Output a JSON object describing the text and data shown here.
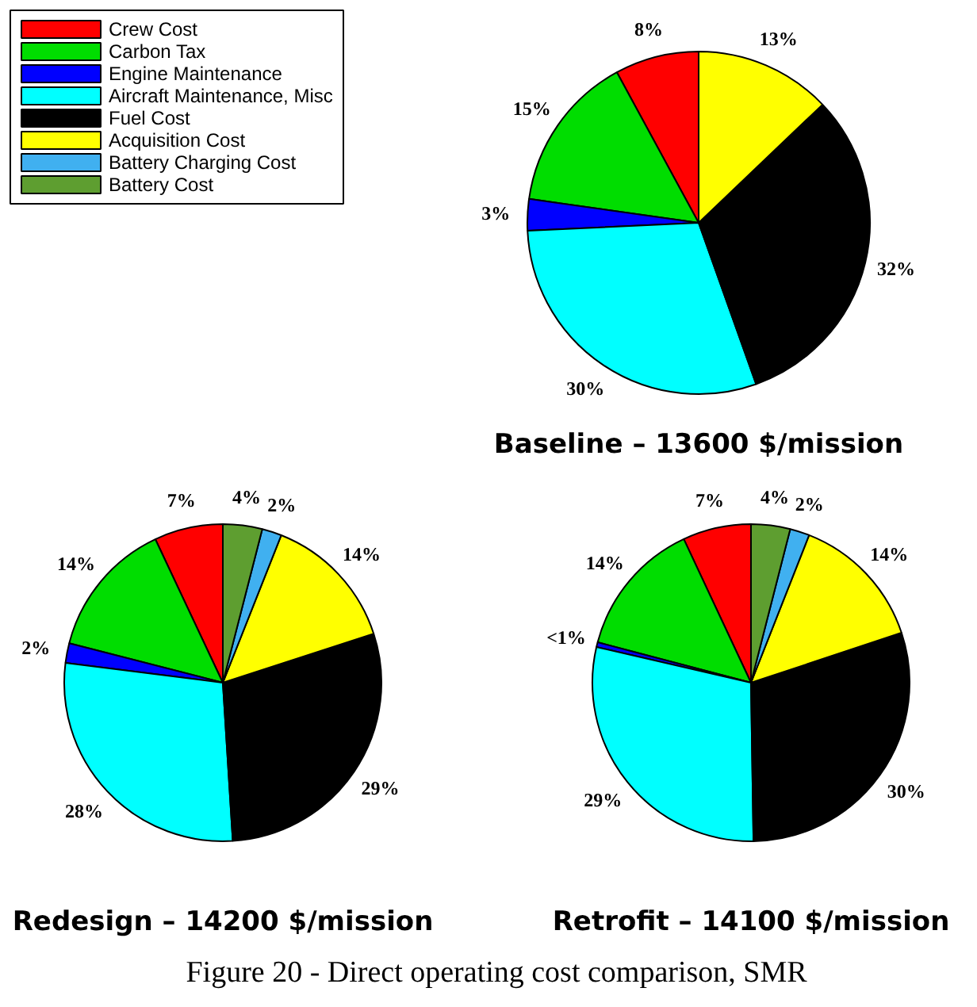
{
  "chart_data": [
    {
      "type": "pie",
      "title": "Baseline – 13600 $/mission",
      "legend": "top left",
      "categories": [
        "Crew Cost",
        "Carbon Tax",
        "Engine Maintenance",
        "Aircraft Maintenance, Misc",
        "Fuel Cost",
        "Acquisition Cost",
        "Battery Charging Cost",
        "Battery Cost"
      ],
      "colors": [
        "#ff0000",
        "#00dd00",
        "#0000ff",
        "#00ffff",
        "#000000",
        "#ffff00",
        "#40b0f0",
        "#5e9e30"
      ],
      "values": [
        8,
        15,
        3,
        30,
        32,
        13,
        null,
        null
      ],
      "value_labels": [
        "8%",
        "15%",
        "3%",
        "30%",
        "32%",
        "13%",
        null,
        null
      ]
    },
    {
      "type": "pie",
      "title": "Redesign – 14200 $/mission",
      "colors": [
        "#ff0000",
        "#00dd00",
        "#0000ff",
        "#00ffff",
        "#000000",
        "#ffff00",
        "#40b0f0",
        "#5e9e30"
      ],
      "values": [
        7,
        14,
        2,
        28,
        29,
        14,
        2,
        4
      ],
      "categories": [
        null,
        null,
        null,
        null,
        null,
        null,
        null,
        null
      ],
      "value_labels": [
        "7%",
        "14%",
        "2%",
        "28%",
        "29%",
        "14%",
        "2%",
        "4%"
      ]
    },
    {
      "type": "pie",
      "title": "Retrofit – 14100 $/mission",
      "colors": [
        "#ff0000",
        "#00dd00",
        "#0000ff",
        "#00ffff",
        "#000000",
        "#ffff00",
        "#40b0f0",
        "#5e9e30"
      ],
      "values": [
        7,
        14,
        0.5,
        29,
        30,
        14,
        2,
        4
      ],
      "categories": [
        null,
        null,
        null,
        null,
        null,
        null,
        null,
        null
      ],
      "value_labels": [
        "7%",
        "14%",
        "<1%",
        "29%",
        "30%",
        "14%",
        "2%",
        "4%"
      ],
      "annotations": [
        "Figure 20 - Direct operating cost comparison, SMR"
      ]
    }
  ]
}
